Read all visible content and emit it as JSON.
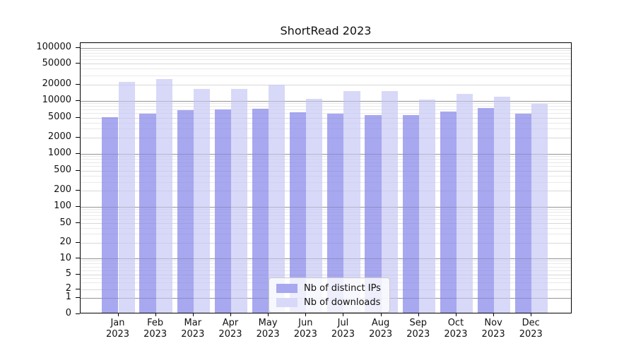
{
  "title": "ShortRead 2023",
  "chart_data": {
    "type": "bar",
    "title": "ShortRead 2023",
    "categories": [
      "Jan 2023",
      "Feb 2023",
      "Mar 2023",
      "Apr 2023",
      "May 2023",
      "Jun 2023",
      "Jul 2023",
      "Aug 2023",
      "Sep 2023",
      "Oct 2023",
      "Nov 2023",
      "Dec 2023"
    ],
    "series": [
      {
        "name": "Nb of distinct IPs",
        "color": "#a8a8f0",
        "values": [
          4950,
          5700,
          6450,
          6700,
          6800,
          6050,
          5650,
          5300,
          5400,
          6200,
          7100,
          5650
        ]
      },
      {
        "name": "Nb of downloads",
        "color": "#d8d8f8",
        "values": [
          21800,
          24100,
          15900,
          16000,
          18900,
          10300,
          14300,
          14500,
          9900,
          12800,
          11200,
          8400
        ]
      }
    ],
    "xlabel": "",
    "ylabel": "",
    "yscale": "symlog",
    "y_ticks": [
      0,
      1,
      2,
      5,
      10,
      20,
      50,
      100,
      200,
      500,
      1000,
      2000,
      5000,
      10000,
      20000,
      50000,
      100000
    ],
    "ylim": [
      0,
      100000
    ],
    "grid": "both",
    "legend_position": "lower center"
  }
}
